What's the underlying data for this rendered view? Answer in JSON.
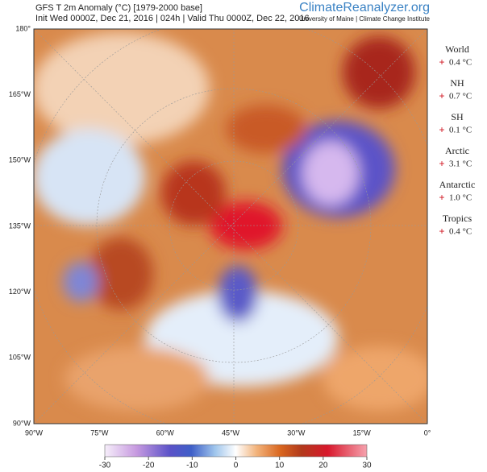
{
  "header": {
    "title": "GFS T 2m Anomaly (°C) [1979-2000 base]",
    "subtitle": "Init Wed 0000Z, Dec 21, 2016 | 024h | Valid Thu 0000Z, Dec 22, 2016",
    "logo": "ClimateReanalyzer.org",
    "affiliation": "University of Maine | Climate Change Institute"
  },
  "left_labels": [
    "180°",
    "165°W",
    "150°W",
    "135°W",
    "120°W",
    "105°W",
    "90°W"
  ],
  "bottom_labels": [
    "90°W",
    "75°W",
    "60°W",
    "45°W",
    "30°W",
    "15°W",
    "0°"
  ],
  "stats": [
    {
      "region": "World",
      "sign": "+",
      "value": "0.4 °C"
    },
    {
      "region": "NH",
      "sign": "+",
      "value": "0.7 °C"
    },
    {
      "region": "SH",
      "sign": "+",
      "value": "0.1 °C"
    },
    {
      "region": "Arctic",
      "sign": "+",
      "value": "3.1 °C"
    },
    {
      "region": "Antarctic",
      "sign": "+",
      "value": "1.0 °C"
    },
    {
      "region": "Tropics",
      "sign": "+",
      "value": "0.4 °C"
    }
  ],
  "colorbar": {
    "lim": [
      -30,
      30
    ],
    "ticks": [
      -30,
      -20,
      -10,
      0,
      10,
      20,
      30
    ]
  }
}
